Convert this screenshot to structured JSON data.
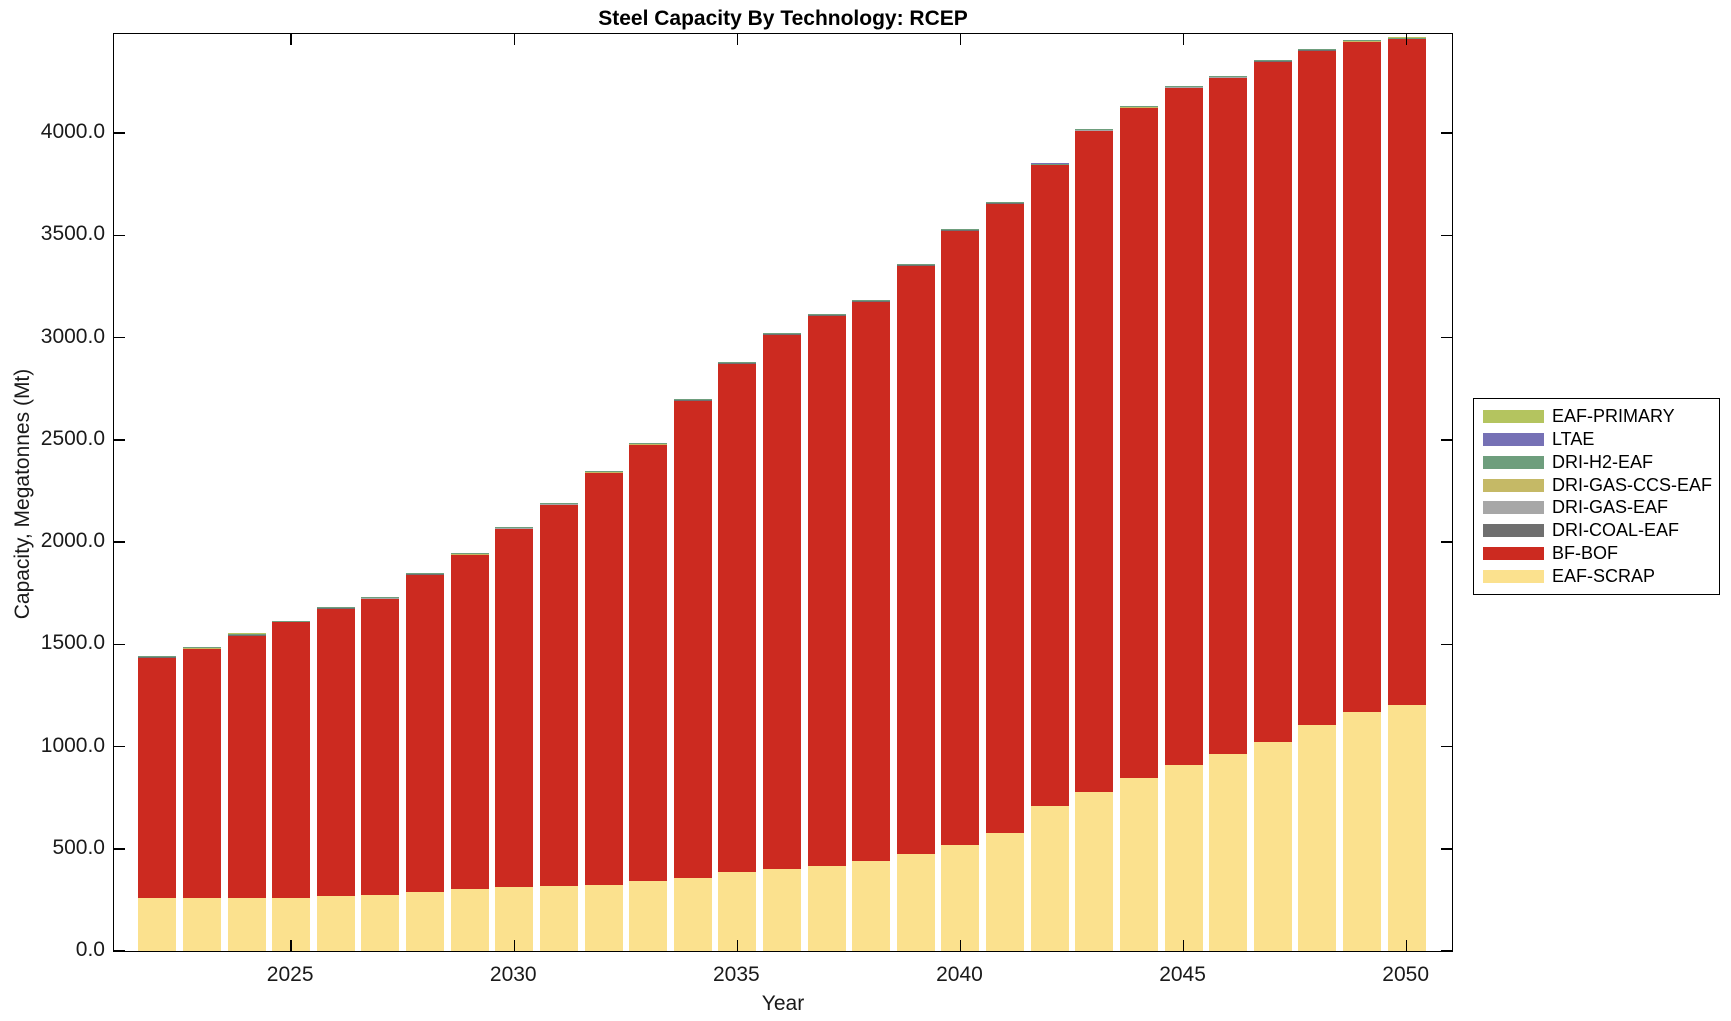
{
  "title": "Steel Capacity By Technology: RCEP",
  "chart_data": {
    "type": "bar",
    "stacked": true,
    "title": "Steel Capacity By Technology: RCEP",
    "xlabel": "Year",
    "ylabel": "Capacity, Megatonnes (Mt)",
    "grid": false,
    "legend_position": "outside-right",
    "x": [
      2022,
      2023,
      2024,
      2025,
      2026,
      2027,
      2028,
      2029,
      2030,
      2031,
      2032,
      2033,
      2034,
      2035,
      2036,
      2037,
      2038,
      2039,
      2040,
      2041,
      2042,
      2043,
      2044,
      2045,
      2046,
      2047,
      2048,
      2049,
      2050
    ],
    "xticks": [
      2025,
      2030,
      2035,
      2040,
      2045,
      2050
    ],
    "xtick_labels": [
      "2025",
      "2030",
      "2035",
      "2040",
      "2045",
      "2050"
    ],
    "yticks": [
      0,
      500,
      1000,
      1500,
      2000,
      2500,
      3000,
      3500,
      4000
    ],
    "ytick_labels": [
      "0.0",
      "500.0",
      "1000.0",
      "1500.0",
      "2000.0",
      "2500.0",
      "3000.0",
      "3500.0",
      "4000.0"
    ],
    "ylim": [
      0,
      4480
    ],
    "units": "Mt",
    "series_bottom_to_top": [
      {
        "name": "EAF-SCRAP",
        "color": "#fbe18e",
        "values": [
          257,
          257,
          258,
          261,
          270,
          276,
          291,
          302,
          311,
          318,
          325,
          343,
          359,
          385,
          403,
          416,
          440,
          473,
          517,
          579,
          709,
          777,
          844,
          909,
          964,
          1021,
          1104,
          1169,
          1205
        ]
      },
      {
        "name": "BF-BOF",
        "color": "#cc2a20",
        "values": [
          1177,
          1219,
          1286,
          1347,
          1406,
          1446,
          1549,
          1634,
          1753,
          1863,
          2012,
          2131,
          2334,
          2489,
          2613,
          2692,
          2736,
          2880,
          3005,
          3077,
          3134,
          3233,
          3278,
          3312,
          3306,
          3328,
          3299,
          3276,
          3254
        ]
      },
      {
        "name": "DRI-COAL-EAF",
        "color": "#6f6f6f",
        "constant_value": 4
      },
      {
        "name": "DRI-GAS-EAF",
        "color": "#a7a7a7",
        "constant_value": 3
      },
      {
        "name": "DRI-GAS-CCS-EAF",
        "color": "#c5b966",
        "constant_value": 1
      },
      {
        "name": "DRI-H2-EAF",
        "color": "#6e9e7d",
        "constant_value": 0.5
      },
      {
        "name": "LTAE",
        "color": "#7671b5",
        "constant_value": 0.3
      },
      {
        "name": "EAF-PRIMARY",
        "color": "#b4c45f",
        "constant_value": 0.2
      }
    ],
    "approx_totals_per_year": [
      1443,
      1485,
      1553,
      1617,
      1685,
      1731,
      1849,
      1945,
      2073,
      2190,
      2346,
      2483,
      2702,
      2883,
      3025,
      3117,
      3185,
      3362,
      3531,
      3665,
      3852,
      4019,
      4131,
      4230,
      4279,
      4358,
      4412,
      4454,
      4468
    ]
  },
  "legend": {
    "entries_top_to_bottom": [
      {
        "label": "EAF-PRIMARY",
        "color": "#b4c45f"
      },
      {
        "label": "LTAE",
        "color": "#7671b5"
      },
      {
        "label": "DRI-H2-EAF",
        "color": "#6e9e7d"
      },
      {
        "label": "DRI-GAS-CCS-EAF",
        "color": "#c5b966"
      },
      {
        "label": "DRI-GAS-EAF",
        "color": "#a7a7a7"
      },
      {
        "label": "DRI-COAL-EAF",
        "color": "#6f6f6f"
      },
      {
        "label": "BF-BOF",
        "color": "#cc2a20"
      },
      {
        "label": "EAF-SCRAP",
        "color": "#fbe18e"
      }
    ]
  },
  "colors": {
    "axis": "#000000",
    "background": "#ffffff"
  }
}
